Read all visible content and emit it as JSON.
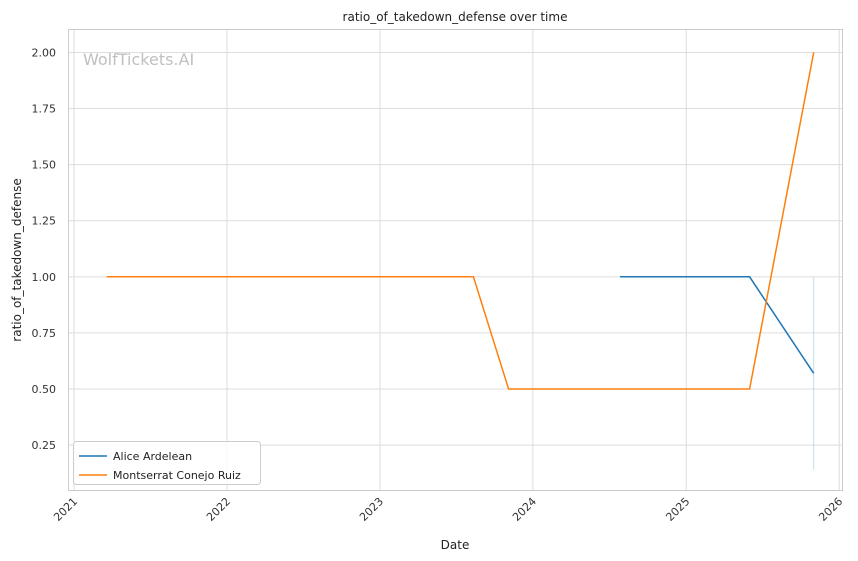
{
  "chart_data": {
    "type": "line",
    "title": "ratio_of_takedown_defense over time",
    "xlabel": "Date",
    "ylabel": "ratio_of_takedown_defense",
    "watermark": "WolfTickets.AI",
    "x_ticks": [
      "2021",
      "2022",
      "2023",
      "2024",
      "2025",
      "2026"
    ],
    "y_ticks": [
      "0.25",
      "0.50",
      "0.75",
      "1.00",
      "1.25",
      "1.50",
      "1.75",
      "2.00"
    ],
    "xlim": [
      "2020-12-20",
      "2026-01-10"
    ],
    "ylim": [
      0.05,
      2.1
    ],
    "grid": true,
    "legend_position": "lower-left",
    "series": [
      {
        "name": "Alice Ardelean",
        "color": "#1f77b4",
        "points": [
          {
            "x": "2024-07-27",
            "y": 1.0
          },
          {
            "x": "2025-06-01",
            "y": 1.0
          },
          {
            "x": "2025-11-01",
            "y": 0.57
          }
        ]
      },
      {
        "name": "Montserrat Conejo Ruiz",
        "color": "#ff7f0e",
        "points": [
          {
            "x": "2021-03-20",
            "y": 1.0
          },
          {
            "x": "2023-08-12",
            "y": 1.0
          },
          {
            "x": "2023-11-04",
            "y": 0.5
          },
          {
            "x": "2025-06-01",
            "y": 0.5
          },
          {
            "x": "2025-11-01",
            "y": 2.0
          }
        ]
      }
    ],
    "error_band": {
      "color": "#add8e6",
      "x": "2025-11-01",
      "y_low": 0.14,
      "y_high": 1.0
    }
  }
}
